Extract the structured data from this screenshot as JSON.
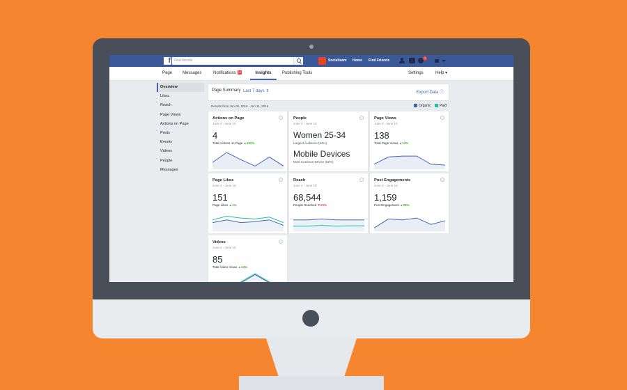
{
  "colors": {
    "background": "#F5862F",
    "facebook_blue": "#3B5998",
    "organic": "#4267B2",
    "paid": "#20C1A4",
    "up": "#42B72A",
    "down": "#FA3E3E"
  },
  "topbar": {
    "logo": "f",
    "search_placeholder": "Find friends",
    "page_name": "Socialteam",
    "home": "Home",
    "find_friends": "Find Friends",
    "notification_count": "2"
  },
  "nav": {
    "page": "Page",
    "messages": "Messages",
    "notifications": "Notifications",
    "notifications_count": "10",
    "insights": "Insights",
    "publishing_tools": "Publishing Tools",
    "settings": "Settings",
    "help": "Help ▾"
  },
  "sidebar": {
    "items": [
      {
        "label": "Overview"
      },
      {
        "label": "Likes"
      },
      {
        "label": "Reach"
      },
      {
        "label": "Page Views"
      },
      {
        "label": "Actions on Page"
      },
      {
        "label": "Posts"
      },
      {
        "label": "Events"
      },
      {
        "label": "Videos"
      },
      {
        "label": "People"
      },
      {
        "label": "Messages"
      }
    ]
  },
  "summary": {
    "title": "Page Summary",
    "range": "Last 7 days ⇕",
    "export": "Export Data ⓘ",
    "results": "Results from Jun 05, 2016 - Jun 11, 2016",
    "legend_organic": "Organic",
    "legend_paid": "Paid"
  },
  "cards": {
    "actions": {
      "title": "Actions on Page",
      "date": "June 4 - June 10",
      "value": "4",
      "sub": "Total Actions on Page",
      "change": "▲100%",
      "trend": [
        0.3,
        0.85,
        0.45,
        0.1,
        0.6,
        0.1
      ],
      "info": "i"
    },
    "people": {
      "title": "People",
      "date": "June 4 - June 10",
      "value1": "Women 25-34",
      "sub1": "Largest Audience (34%)",
      "value2": "Mobile Devices",
      "sub2": "Most Common Device (52%)",
      "info": "i"
    },
    "page_views": {
      "title": "Page Views",
      "date": "June 4 - June 10",
      "value": "138",
      "sub": "Total Page Views",
      "change": "▲13%",
      "trend": [
        0.2,
        0.6,
        0.65,
        0.65,
        0.2,
        0.15
      ],
      "info": "i"
    },
    "page_likes": {
      "title": "Page Likes",
      "date": "June 4 - June 10",
      "value": "151",
      "sub": "Page Likes",
      "change": "▲1%",
      "trend_organic": [
        0.4,
        0.55,
        0.4,
        0.45,
        0.55,
        0.25
      ],
      "trend_paid": [
        0.55,
        0.75,
        0.65,
        0.6,
        0.7,
        0.4
      ],
      "info": "i"
    },
    "reach": {
      "title": "Reach",
      "date": "June 4 - June 10",
      "value": "68,544",
      "sub": "People Reached",
      "change": "▼23%",
      "trend_organic": [
        0.55,
        0.55,
        0.6,
        0.55,
        0.55,
        0.55
      ],
      "trend_paid": [
        0.2,
        0.2,
        0.25,
        0.2,
        0.22,
        0.22
      ],
      "info": "i"
    },
    "post_engagements": {
      "title": "Post Engagements",
      "date": "June 4 - June 10",
      "value": "1,159",
      "sub": "Post Engagement",
      "change": "▲28%",
      "trend": [
        0.1,
        0.6,
        0.55,
        0.65,
        0.3,
        0.5
      ],
      "info": "i"
    },
    "videos": {
      "title": "Videos",
      "date": "June 4 - June 10",
      "value": "85",
      "sub": "Total Video Views",
      "change": "▲43%",
      "trend_organic": [
        0.1,
        0.1,
        0.5,
        0.95,
        0.5,
        0.1
      ],
      "trend_paid": [
        0.05,
        0.15,
        0.55,
        1.0,
        0.55,
        0.2
      ],
      "info": "i"
    }
  }
}
